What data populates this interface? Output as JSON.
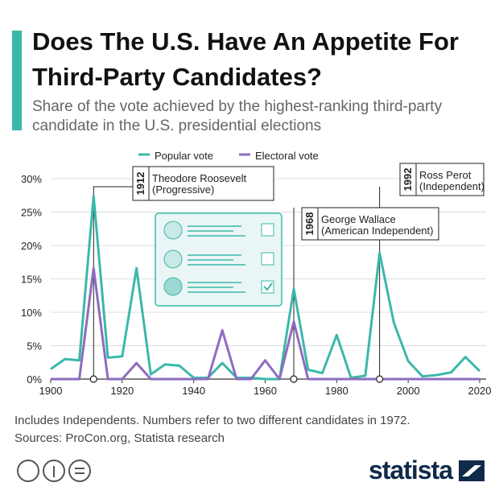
{
  "chart_data": {
    "type": "line",
    "title": "Does The U.S. Have An Appetite For Third-Party Candidates?",
    "subtitle": "Share of the vote achieved by the highest-ranking third-party candidate in the U.S. presidential elections",
    "x": [
      1900,
      1904,
      1908,
      1912,
      1916,
      1920,
      1924,
      1928,
      1932,
      1936,
      1940,
      1944,
      1948,
      1952,
      1956,
      1960,
      1964,
      1968,
      1972,
      1976,
      1980,
      1984,
      1988,
      1992,
      1996,
      2000,
      2004,
      2008,
      2012,
      2016,
      2020
    ],
    "series": [
      {
        "name": "Popular vote",
        "color": "#3bb8a9",
        "values": [
          1.5,
          3.0,
          2.8,
          27.4,
          3.2,
          3.4,
          16.6,
          0.7,
          2.2,
          2.0,
          0.2,
          0.2,
          2.4,
          0.2,
          0.2,
          0.0,
          0.0,
          13.5,
          1.4,
          0.9,
          6.6,
          0.2,
          0.5,
          18.9,
          8.4,
          2.7,
          0.4,
          0.6,
          1.0,
          3.3,
          1.2
        ]
      },
      {
        "name": "Electoral vote",
        "color": "#8e6cc0",
        "values": [
          0,
          0,
          0,
          16.6,
          0,
          0,
          2.4,
          0,
          0,
          0,
          0,
          0,
          7.3,
          0,
          0,
          2.8,
          0,
          8.6,
          0,
          0,
          0,
          0,
          0,
          0,
          0,
          0,
          0,
          0,
          0,
          0,
          0
        ]
      }
    ],
    "xlim": [
      1900,
      2020
    ],
    "xticks": [
      1900,
      1920,
      1940,
      1960,
      1980,
      2000,
      2020
    ],
    "ylim": [
      0,
      30
    ],
    "yticks": [
      {
        "value": 0,
        "label": "0%"
      },
      {
        "value": 5,
        "label": "5%"
      },
      {
        "value": 10,
        "label": "10%"
      },
      {
        "value": 15,
        "label": "15%"
      },
      {
        "value": 20,
        "label": "20%"
      },
      {
        "value": 25,
        "label": "25%"
      },
      {
        "value": 30,
        "label": "30%"
      }
    ],
    "grid": true,
    "annotations": [
      {
        "x": 1912,
        "name": "Theodore Roosevelt",
        "party": "(Progressive)"
      },
      {
        "x": 1968,
        "name": "George Wallace",
        "party": "(American Independent)"
      },
      {
        "x": 1992,
        "name": "Ross Perot",
        "party": "(Independent)"
      }
    ],
    "note": "Includes Independents. Numbers refer to two different candidates in 1972.",
    "source": "Sources: ProCon.org, Statista research",
    "brand": "statista"
  }
}
